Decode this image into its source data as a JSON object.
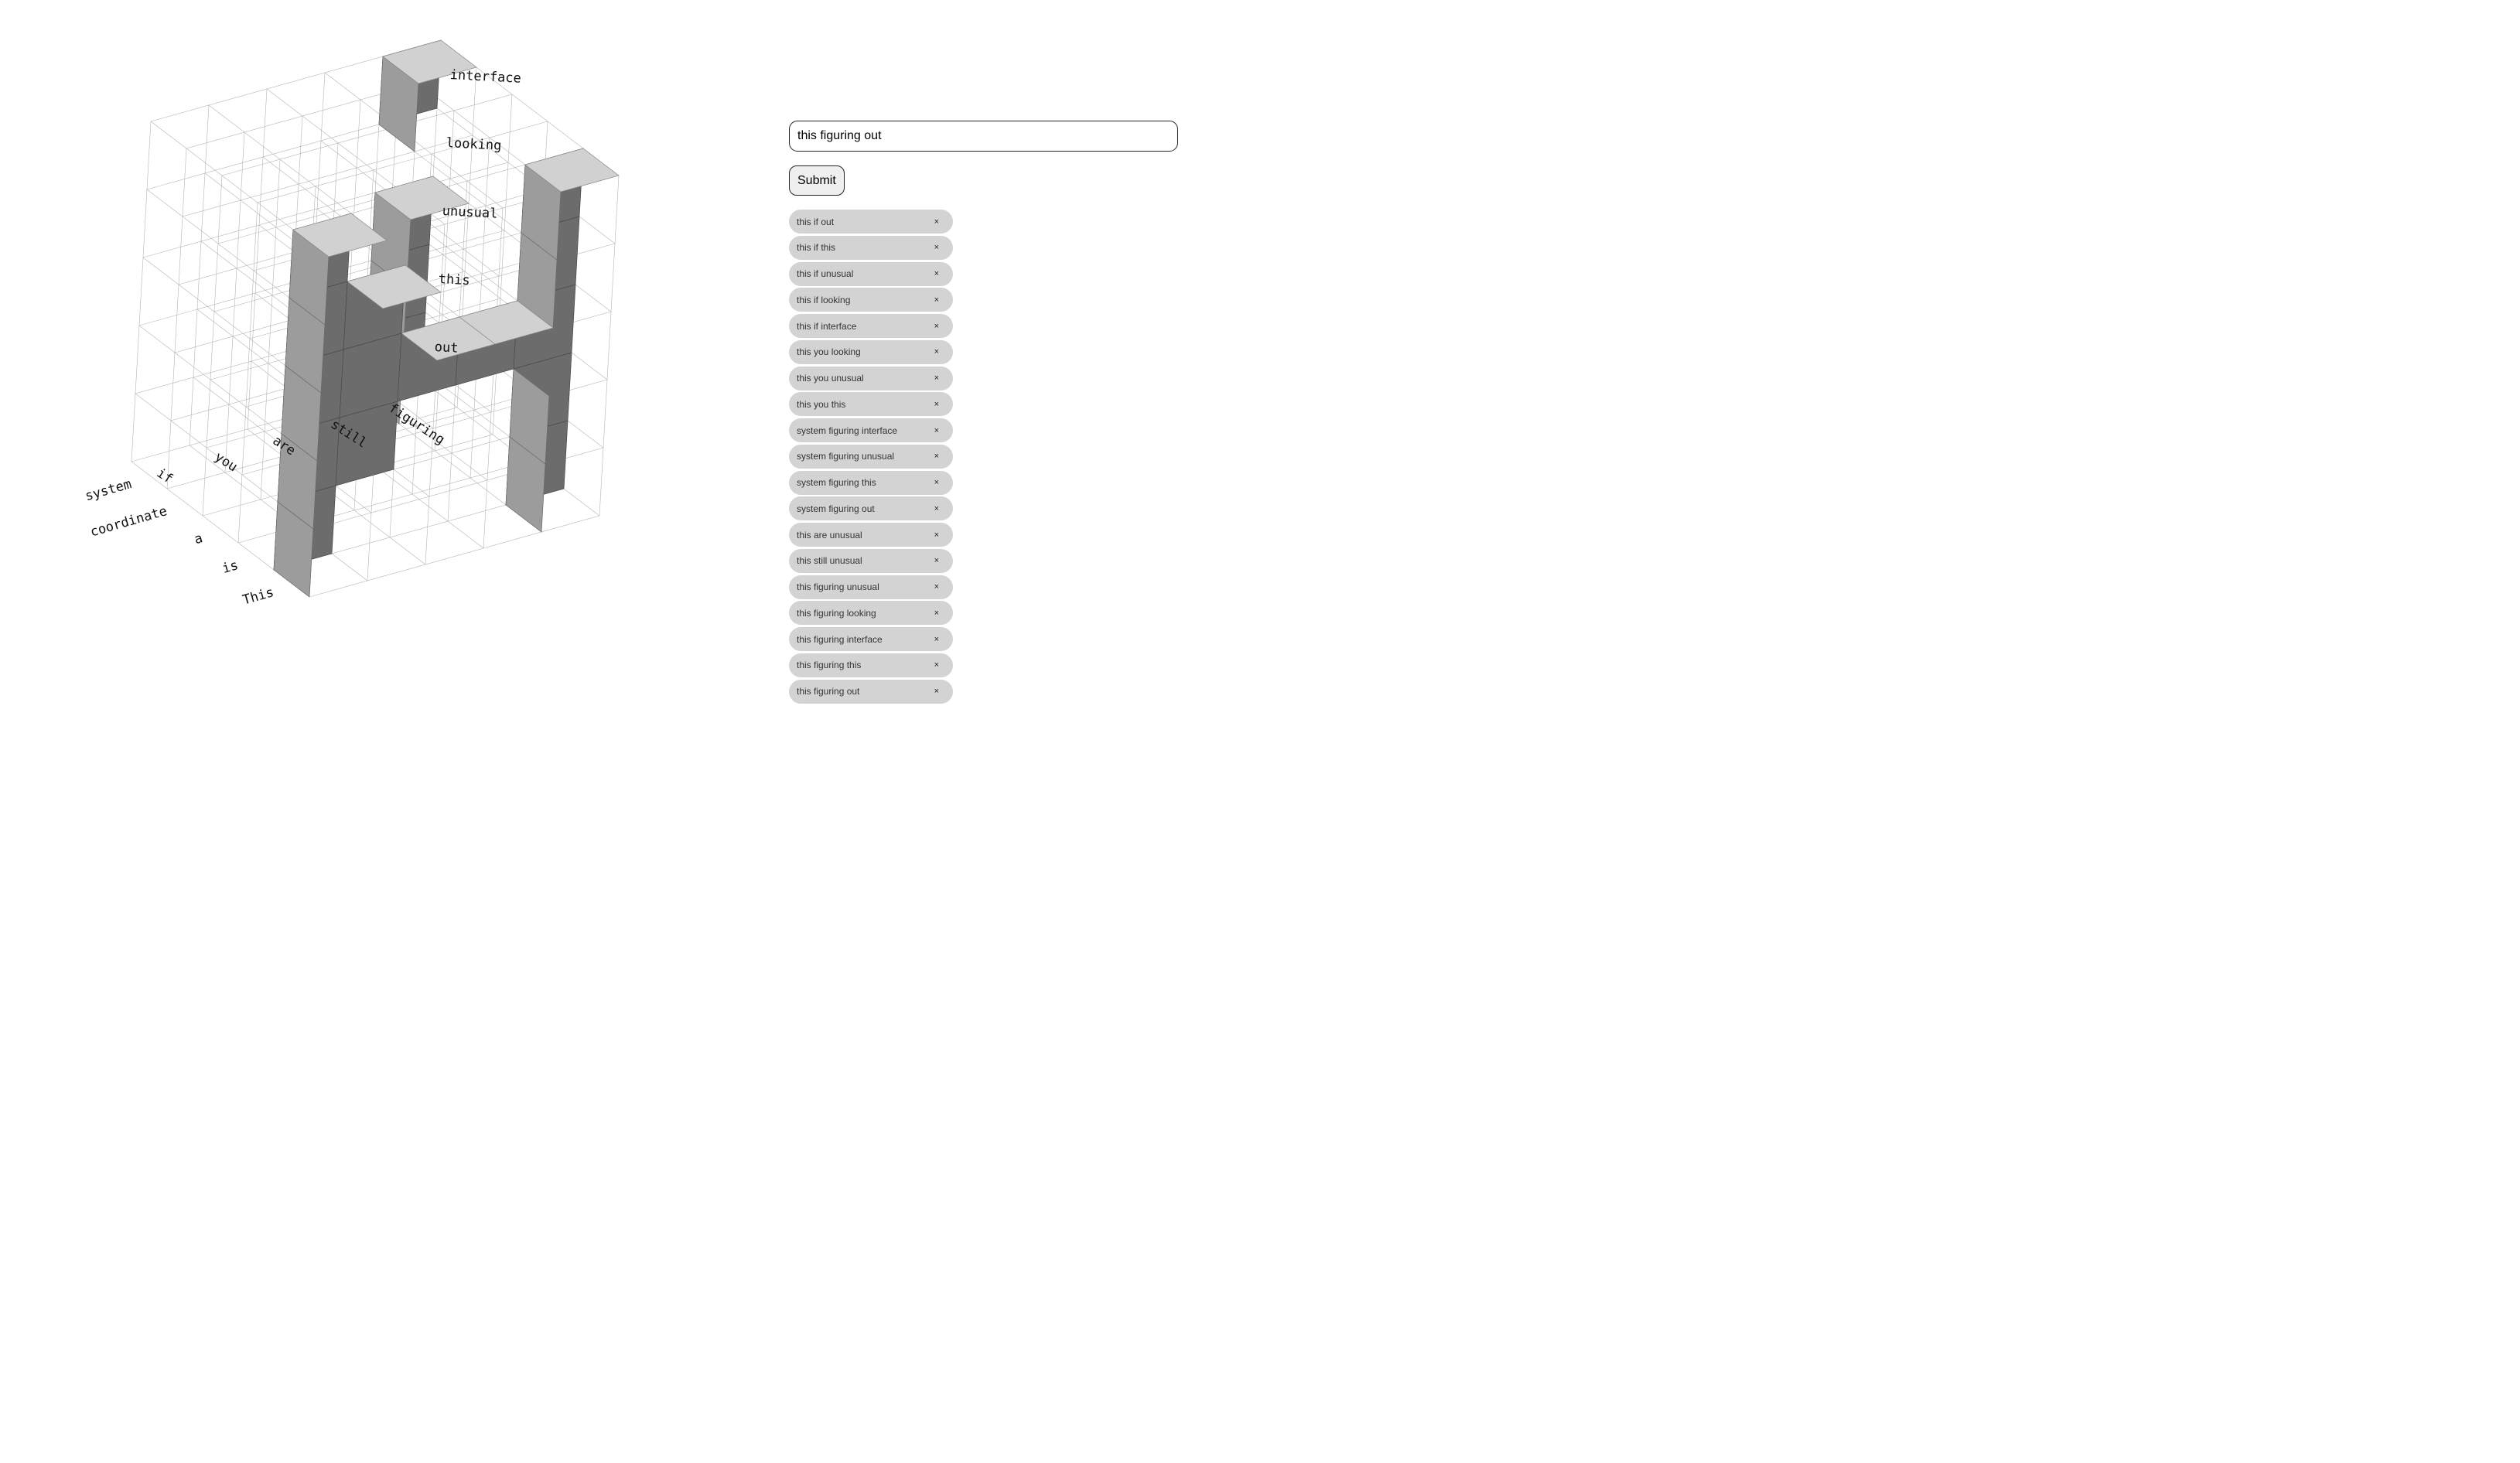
{
  "scene": {
    "axes": {
      "x_labels": [
        "This",
        "is",
        "a",
        "coordinate",
        "system"
      ],
      "y_labels": [
        "if",
        "you",
        "are",
        "still",
        "figuring"
      ],
      "z_labels": [
        "out",
        "this",
        "unusual",
        "looking",
        "interface"
      ]
    }
  },
  "form": {
    "input_value": "this figuring out",
    "submit_label": "Submit"
  },
  "tags": [
    {
      "label": "this if out",
      "close": "×"
    },
    {
      "label": "this if this",
      "close": "×"
    },
    {
      "label": "this if unusual",
      "close": "×"
    },
    {
      "label": "this if looking",
      "close": "×"
    },
    {
      "label": "this if interface",
      "close": "×"
    },
    {
      "label": "this you looking",
      "close": "×"
    },
    {
      "label": "this you unusual",
      "close": "×"
    },
    {
      "label": "this you this",
      "close": "×"
    },
    {
      "label": "system figuring interface",
      "close": "×"
    },
    {
      "label": "system figuring unusual",
      "close": "×"
    },
    {
      "label": "system figuring this",
      "close": "×"
    },
    {
      "label": "system figuring out",
      "close": "×"
    },
    {
      "label": "this are unusual",
      "close": "×"
    },
    {
      "label": "this still unusual",
      "close": "×"
    },
    {
      "label": "this figuring unusual",
      "close": "×"
    },
    {
      "label": "this figuring looking",
      "close": "×"
    },
    {
      "label": "this figuring interface",
      "close": "×"
    },
    {
      "label": "this figuring this",
      "close": "×"
    },
    {
      "label": "this figuring out",
      "close": "×"
    }
  ]
}
